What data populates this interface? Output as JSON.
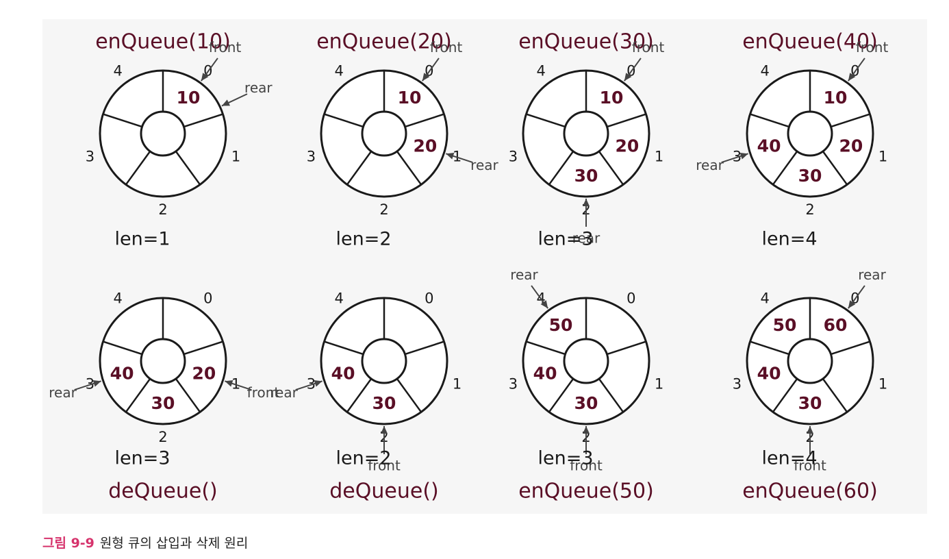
{
  "colors": {
    "value_text": "#5a0f26",
    "pointer": "#444444",
    "caption_label": "#d6336c",
    "panel_bg": "#f6f6f6"
  },
  "slot_indices": [
    "0",
    "1",
    "2",
    "3",
    "4"
  ],
  "states": [
    {
      "operation": "enQueue(10)",
      "length": "len=1",
      "values": [
        "10",
        "",
        "",
        "",
        ""
      ],
      "front_pos": 0.0,
      "rear_pos": 0.4
    },
    {
      "operation": "enQueue(20)",
      "length": "len=2",
      "values": [
        "10",
        "20",
        "",
        "",
        ""
      ],
      "front_pos": 0.0,
      "rear_pos": 1.0
    },
    {
      "operation": "enQueue(30)",
      "length": "len=3",
      "values": [
        "10",
        "20",
        "30",
        "",
        ""
      ],
      "front_pos": 0.0,
      "rear_pos": 2.0
    },
    {
      "operation": "enQueue(40)",
      "length": "len=4",
      "values": [
        "10",
        "20",
        "30",
        "40",
        ""
      ],
      "front_pos": 0.0,
      "rear_pos": 3.0
    },
    {
      "operation": "deQueue()",
      "length": "len=3",
      "values": [
        "",
        "20",
        "30",
        "40",
        ""
      ],
      "front_pos": 1.0,
      "rear_pos": 3.0
    },
    {
      "operation": "deQueue()",
      "length": "len=2",
      "values": [
        "",
        "",
        "30",
        "40",
        ""
      ],
      "front_pos": 2.0,
      "rear_pos": 3.0
    },
    {
      "operation": "enQueue(50)",
      "length": "len=3",
      "values": [
        "",
        "",
        "30",
        "40",
        "50"
      ],
      "front_pos": 2.0,
      "rear_pos": 4.0
    },
    {
      "operation": "enQueue(60)",
      "length": "len=4",
      "values": [
        "60",
        "",
        "30",
        "40",
        "50"
      ],
      "front_pos": 2.0,
      "rear_pos": 0.0
    }
  ],
  "labels": {
    "front": "front",
    "rear": "rear"
  },
  "caption": {
    "figure_label": "그림 9-9",
    "text": "원형 큐의 삽입과 삭제 원리"
  }
}
